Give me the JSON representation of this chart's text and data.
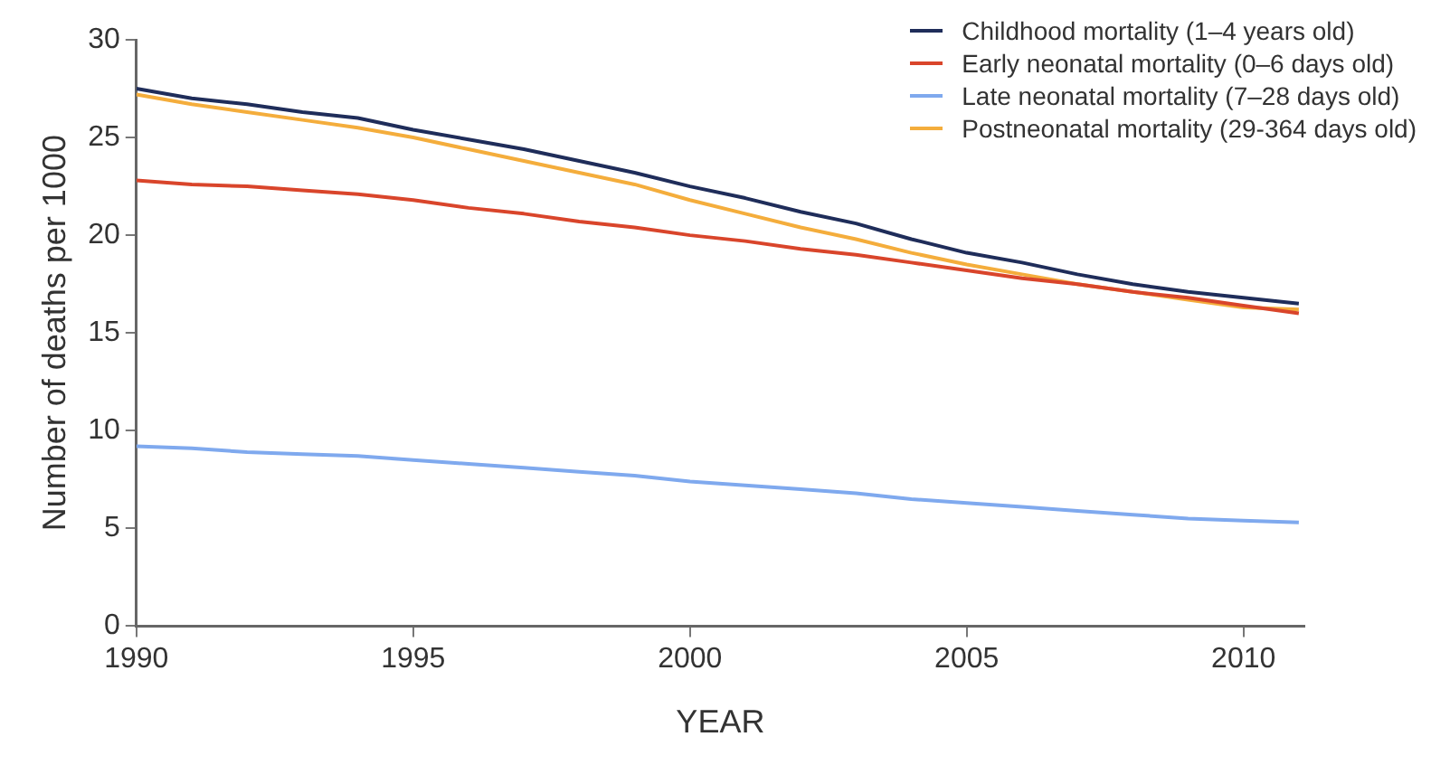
{
  "chart_data": {
    "type": "line",
    "xlabel": "YEAR",
    "ylabel": "Number of deaths per 1000",
    "x": [
      1990,
      1991,
      1992,
      1993,
      1994,
      1995,
      1996,
      1997,
      1998,
      1999,
      2000,
      2001,
      2002,
      2003,
      2004,
      2005,
      2006,
      2007,
      2008,
      2009,
      2010,
      2011
    ],
    "series": [
      {
        "name": "Childhood mortality (1–4 years old)",
        "color": "#1f2d5a",
        "values": [
          27.5,
          27.0,
          26.7,
          26.3,
          26.0,
          25.4,
          24.9,
          24.4,
          23.8,
          23.2,
          22.5,
          21.9,
          21.2,
          20.6,
          19.8,
          19.1,
          18.6,
          18.0,
          17.5,
          17.1,
          16.8,
          16.5
        ]
      },
      {
        "name": "Early neonatal mortality (0–6 days old)",
        "color": "#d9452b",
        "values": [
          22.8,
          22.6,
          22.5,
          22.3,
          22.1,
          21.8,
          21.4,
          21.1,
          20.7,
          20.4,
          20.0,
          19.7,
          19.3,
          19.0,
          18.6,
          18.2,
          17.8,
          17.5,
          17.1,
          16.8,
          16.4,
          16.0
        ]
      },
      {
        "name": "Late neonatal mortality (7–28 days old)",
        "color": "#7fa9ee",
        "values": [
          9.2,
          9.1,
          8.9,
          8.8,
          8.7,
          8.5,
          8.3,
          8.1,
          7.9,
          7.7,
          7.4,
          7.2,
          7.0,
          6.8,
          6.5,
          6.3,
          6.1,
          5.9,
          5.7,
          5.5,
          5.4,
          5.3
        ]
      },
      {
        "name": "Postneonatal mortality (29-364 days old)",
        "color": "#f4ad3c",
        "values": [
          27.2,
          26.7,
          26.3,
          25.9,
          25.5,
          25.0,
          24.4,
          23.8,
          23.2,
          22.6,
          21.8,
          21.1,
          20.4,
          19.8,
          19.1,
          18.5,
          18.0,
          17.5,
          17.1,
          16.7,
          16.3,
          16.2
        ]
      }
    ],
    "xlim": [
      1990,
      2011.1
    ],
    "xticks": [
      1990,
      1995,
      2000,
      2005,
      2010
    ],
    "ylim": [
      0,
      30
    ],
    "yticks": [
      0,
      5,
      10,
      15,
      20,
      25,
      30
    ],
    "legend": "top right",
    "marker": "none",
    "line_style": "solid"
  }
}
